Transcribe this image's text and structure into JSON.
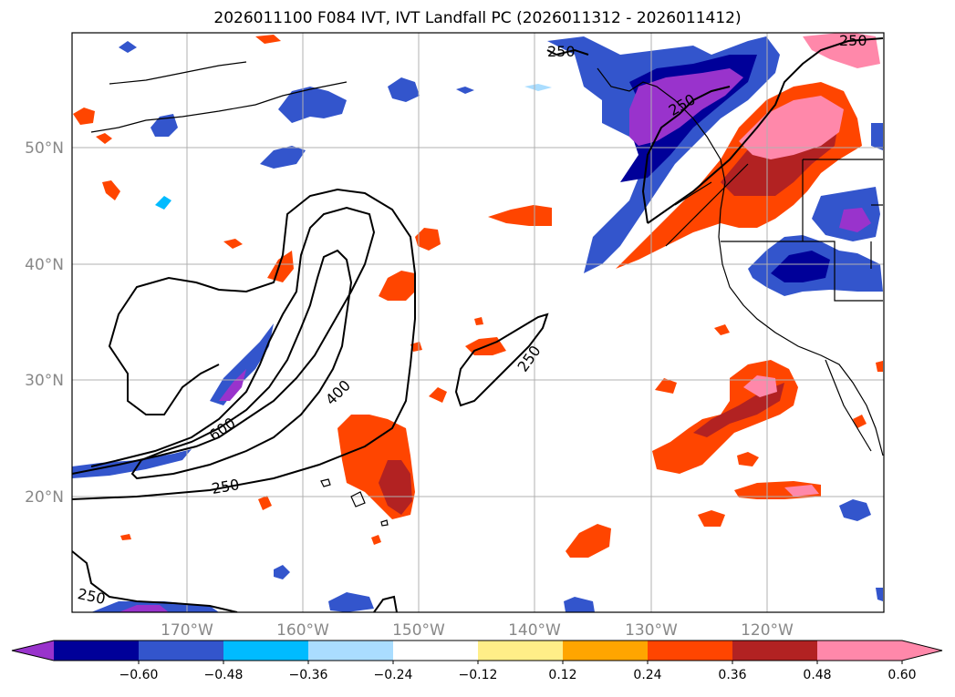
{
  "title": "2026011100 F084 IVT, IVT Landfall PC (2026011312 - 2026011412)",
  "map": {
    "lat_labels": [
      "50°N",
      "40°N",
      "30°N",
      "20°N"
    ],
    "lon_labels": [
      "170°W",
      "160°W",
      "150°W",
      "140°W",
      "130°W",
      "120°W"
    ],
    "contour_labels": [
      "250",
      "250",
      "400",
      "600",
      "250",
      "250",
      "250"
    ]
  },
  "colorbar": {
    "ticks": [
      "−0.60",
      "−0.48",
      "−0.36",
      "−0.24",
      "−0.12",
      "0.12",
      "0.24",
      "0.36",
      "0.48",
      "0.60"
    ],
    "colors": [
      "#9933cc",
      "#000099",
      "#3355cc",
      "#00bbff",
      "#aaddff",
      "#ffffff",
      "#ffee88",
      "#ffa500",
      "#ff4500",
      "#b22222",
      "#ff88aa",
      "#ff88aa"
    ]
  }
}
